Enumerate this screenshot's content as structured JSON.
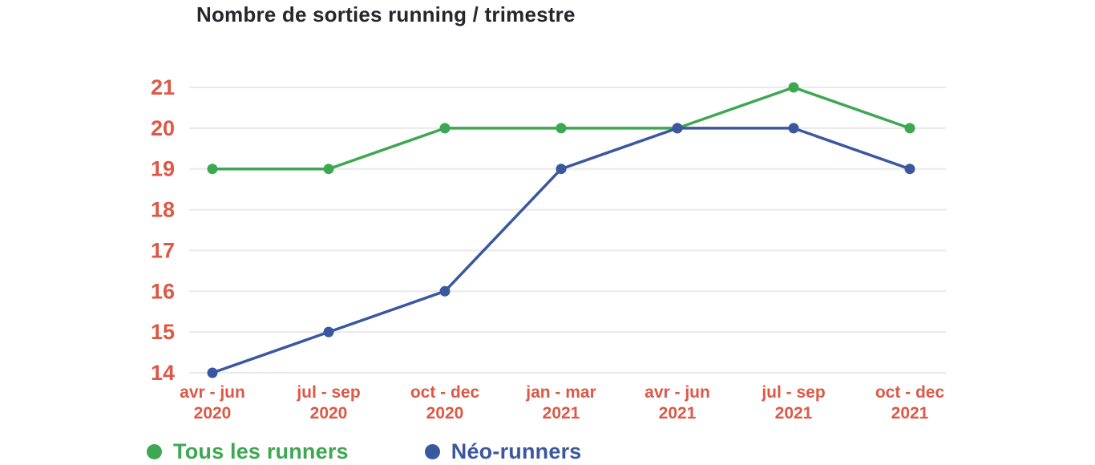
{
  "chart_data": {
    "type": "line",
    "title": "Nombre de sorties running / trimestre",
    "categories": [
      {
        "period": "avr - jun",
        "year": "2020"
      },
      {
        "period": "jul - sep",
        "year": "2020"
      },
      {
        "period": "oct - dec",
        "year": "2020"
      },
      {
        "period": "jan - mar",
        "year": "2021"
      },
      {
        "period": "avr - jun",
        "year": "2021"
      },
      {
        "period": "jul - sep",
        "year": "2021"
      },
      {
        "period": "oct - dec",
        "year": "2021"
      }
    ],
    "yticks": [
      14,
      15,
      16,
      17,
      18,
      19,
      20,
      21
    ],
    "ylim": [
      14,
      21
    ],
    "grid": "horizontal",
    "legend_position": "bottom-left",
    "series": [
      {
        "name": "Tous les runners",
        "color": "#3DA752",
        "values": [
          19,
          19,
          20,
          20,
          20,
          21,
          20
        ]
      },
      {
        "name": "Néo-runners",
        "color": "#3A57A0",
        "values": [
          14,
          15,
          16,
          19,
          20,
          20,
          19
        ]
      }
    ],
    "colors": {
      "axis_labels": "#DD5846",
      "title": "#26262C",
      "gridline": "#E9E9E9",
      "background": "#FFFFFF"
    }
  }
}
